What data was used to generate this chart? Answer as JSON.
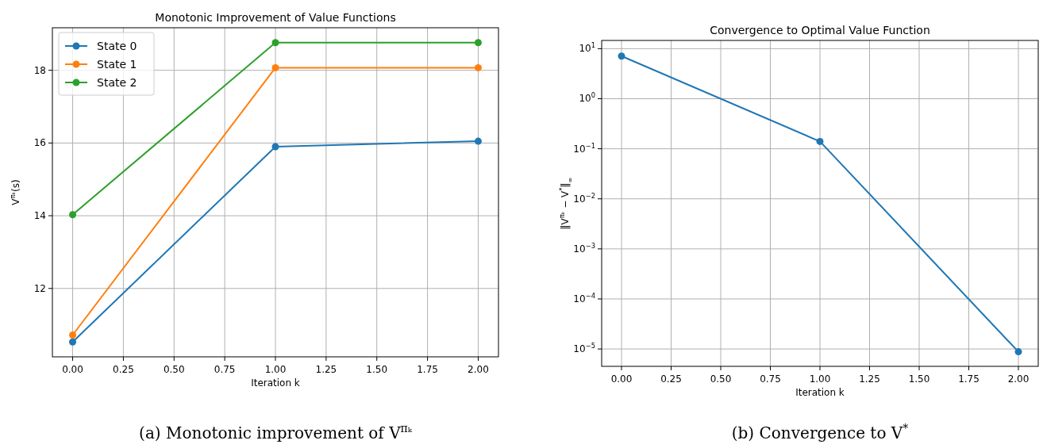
{
  "chart_data": [
    {
      "type": "line",
      "title": "Monotonic Improvement of Value Functions",
      "xlabel": "Iteration k",
      "ylabel": "V$^{πₖ}$(s)",
      "x": [
        0,
        1,
        2
      ],
      "series": [
        {
          "name": "State 0",
          "color": "#1f77b4",
          "values": [
            10.53,
            15.9,
            16.05
          ]
        },
        {
          "name": "State 1",
          "color": "#ff7f0e",
          "values": [
            10.72,
            18.07,
            18.07
          ]
        },
        {
          "name": "State 2",
          "color": "#2ca02c",
          "values": [
            14.03,
            18.76,
            18.76
          ]
        }
      ],
      "xlim": [
        -0.1,
        2.1
      ],
      "ylim": [
        10.12,
        19.17
      ],
      "xticks": [
        {
          "value": 0,
          "label": "0.00"
        },
        {
          "value": 0.25,
          "label": "0.25"
        },
        {
          "value": 0.5,
          "label": "0.50"
        },
        {
          "value": 0.75,
          "label": "0.75"
        },
        {
          "value": 1,
          "label": "1.00"
        },
        {
          "value": 1.25,
          "label": "1.25"
        },
        {
          "value": 1.5,
          "label": "1.50"
        },
        {
          "value": 1.75,
          "label": "1.75"
        },
        {
          "value": 2,
          "label": "2.00"
        }
      ],
      "yticks": [
        12,
        14,
        16,
        18
      ],
      "grid": true,
      "legend": "top left",
      "marker": "circle",
      "line_style": "solid",
      "annotations": [
        "(a) Monotonic improvement of V$^{πₖ}$"
      ]
    },
    {
      "type": "line",
      "title": "Convergence to Optimal Value Function",
      "xlabel": "Iteration k",
      "ylabel": "‖V$^{πₖ}$ − V$^{*}$‖$_{∞}$",
      "x": [
        0,
        1,
        2
      ],
      "series": [
        {
          "color": "#1f77b4",
          "values": [
            7.1,
            0.14,
            8.8e-06
          ]
        }
      ],
      "xlim": [
        -0.1,
        2.1
      ],
      "ylim": [
        4.5e-06,
        14.6
      ],
      "log": "y",
      "xticks": [
        {
          "value": 0,
          "label": "0.00"
        },
        {
          "value": 0.25,
          "label": "0.25"
        },
        {
          "value": 0.5,
          "label": "0.50"
        },
        {
          "value": 0.75,
          "label": "0.75"
        },
        {
          "value": 1,
          "label": "1.00"
        },
        {
          "value": 1.25,
          "label": "1.25"
        },
        {
          "value": 1.5,
          "label": "1.50"
        },
        {
          "value": 1.75,
          "label": "1.75"
        },
        {
          "value": 2,
          "label": "2.00"
        }
      ],
      "yticks": [
        {
          "value": 1e-05,
          "label": "10$^{−5}$"
        },
        {
          "value": 0.0001,
          "label": "10$^{−4}$"
        },
        {
          "value": 0.001,
          "label": "10$^{−3}$"
        },
        {
          "value": 0.01,
          "label": "10$^{−2}$"
        },
        {
          "value": 0.1,
          "label": "10$^{−1}$"
        },
        {
          "value": 1,
          "label": "10$^{0}$"
        },
        {
          "value": 10,
          "label": "10$^{1}$"
        }
      ],
      "grid": true,
      "marker": "circle",
      "line_style": "solid",
      "annotations": [
        "(b) Convergence to V$^{*}$"
      ]
    }
  ]
}
